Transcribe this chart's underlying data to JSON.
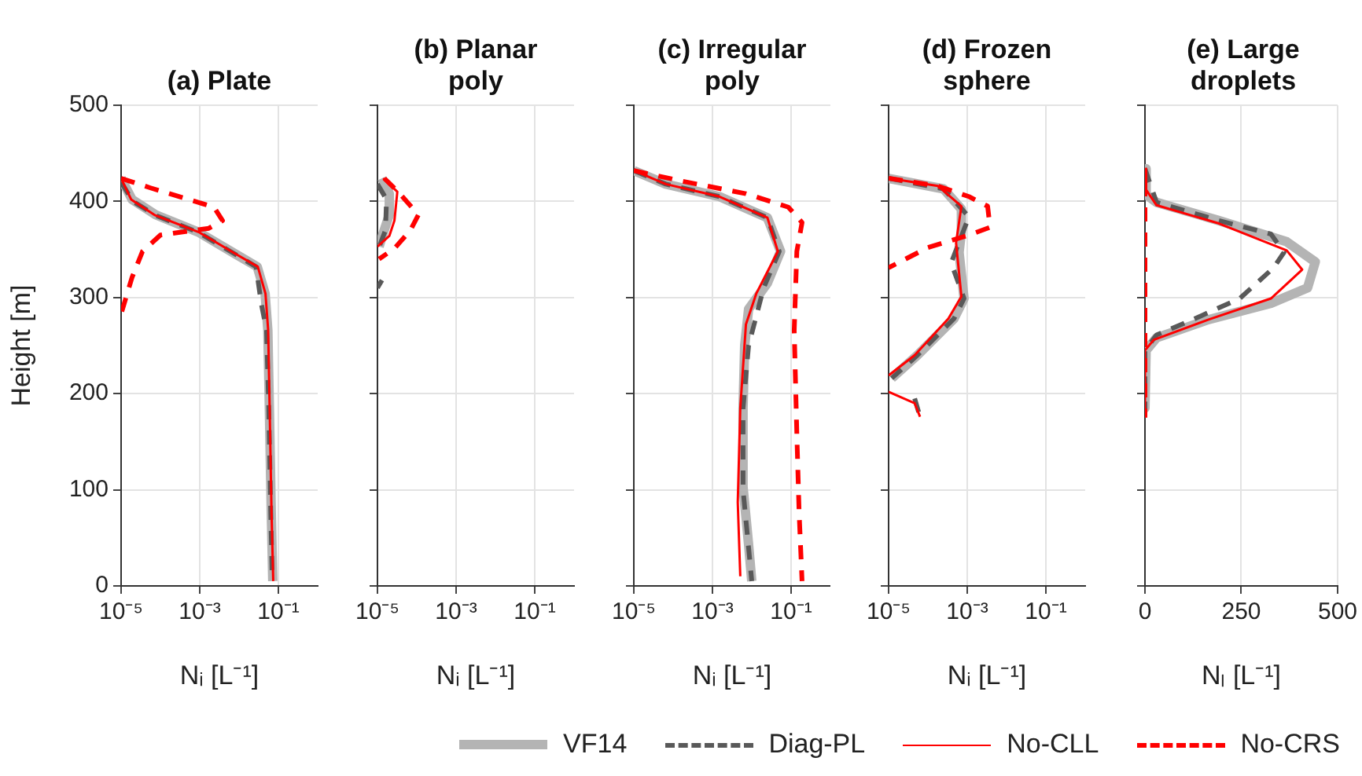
{
  "chart_data": [
    {
      "type": "line",
      "title": "(a) Plate",
      "xlabel": "Nᵢ [L⁻¹]",
      "ylabel": "Height [m]",
      "log": "x",
      "xlim": [
        1e-05,
        1
      ],
      "xticks": [
        {
          "value": 1e-05,
          "label": "10⁻⁵"
        },
        {
          "value": 0.001,
          "label": "10⁻³"
        },
        {
          "value": 0.1,
          "label": "10⁻¹"
        }
      ],
      "ylim": [
        0,
        500
      ],
      "yticks": [
        0,
        100,
        200,
        300,
        400,
        500
      ],
      "grid": true,
      "marker": "none",
      "legend": "bottom",
      "series": [
        {
          "name": "VF14",
          "color": "#b4b4b4",
          "line_style": "solid",
          "x": [
            1e-05,
            1.9e-05,
            7.6e-05,
            0.00093,
            0.0083,
            0.029,
            0.046,
            0.054,
            0.059,
            0.066,
            0.072
          ],
          "values": [
            424,
            402,
            386,
            368,
            345,
            332,
            304,
            266,
            185,
            76,
            5
          ]
        },
        {
          "name": "Diag-PL",
          "color": "#595959",
          "line_style": "dashed",
          "x": [
            1e-05,
            2e-05,
            8e-05,
            0.0009,
            0.008,
            0.027,
            0.037,
            0.05,
            0.057,
            0.064,
            0.07
          ],
          "values": [
            420,
            400,
            385,
            368,
            345,
            332,
            293,
            266,
            185,
            76,
            5
          ]
        },
        {
          "name": "No-CLL",
          "color": "#ff0000",
          "line_style": "solid",
          "x": [
            1e-05,
            1.8e-05,
            7e-05,
            0.00095,
            0.0085,
            0.03,
            0.047,
            0.055,
            0.06,
            0.067,
            0.074
          ],
          "values": [
            424,
            402,
            386,
            368,
            345,
            332,
            304,
            266,
            185,
            76,
            5
          ]
        },
        {
          "name": "No-CRS",
          "color": "#ff0000",
          "line_style": "dashed",
          "x": [
            1e-05,
            5.6e-05,
            0.0023,
            0.0038,
            0.0017,
            0.0001,
            3.5e-05,
            1.9e-05,
            1e-05
          ],
          "values": [
            424,
            414,
            394,
            380,
            372,
            365,
            348,
            321,
            283
          ]
        }
      ]
    },
    {
      "type": "line",
      "title": "(b) Planar poly",
      "xlabel": "Nᵢ [L⁻¹]",
      "log": "x",
      "xlim": [
        1e-05,
        1
      ],
      "xticks": [
        {
          "value": 1e-05,
          "label": "10⁻⁵"
        },
        {
          "value": 0.001,
          "label": "10⁻³"
        },
        {
          "value": 0.1,
          "label": "10⁻¹"
        }
      ],
      "ylim": [
        0,
        500
      ],
      "yticks": [
        0,
        100,
        200,
        300,
        400,
        500
      ],
      "grid": true,
      "tick_labels": "x",
      "marker": "none",
      "series": [
        {
          "color": "#b4b4b4",
          "line_style": "solid",
          "x": [
            1.3e-05,
            2e-05,
            2e-05,
            1.4e-05,
            1.1e-05
          ],
          "values": [
            424,
            408,
            386,
            367,
            353
          ]
        },
        {
          "color": "#595959",
          "line_style": "dashed",
          "x": [
            1e-05,
            1.7e-05,
            1.6e-05,
            1e-05,
            null,
            1.3e-05,
            1e-05
          ],
          "values": [
            418,
            402,
            370,
            348,
            null,
            318,
            310
          ]
        },
        {
          "color": "#ff0000",
          "line_style": "solid",
          "x": [
            1.4e-05,
            3.2e-05,
            2.7e-05,
            2e-05,
            1e-05
          ],
          "values": [
            424,
            410,
            380,
            364,
            353
          ]
        },
        {
          "color": "#ff0000",
          "line_style": "dashed",
          "x": [
            1.5e-05,
            3.7e-05,
            0.00011,
            6.9e-05,
            2.7e-05,
            1.1e-05
          ],
          "values": [
            424,
            408,
            386,
            370,
            351,
            340
          ]
        }
      ]
    },
    {
      "type": "line",
      "title": "(c) Irregular poly",
      "xlabel": "Nᵢ [L⁻¹]",
      "log": "x",
      "xlim": [
        1e-05,
        1
      ],
      "xticks": [
        {
          "value": 1e-05,
          "label": "10⁻⁵"
        },
        {
          "value": 0.001,
          "label": "10⁻³"
        },
        {
          "value": 0.1,
          "label": "10⁻¹"
        }
      ],
      "ylim": [
        0,
        500
      ],
      "yticks": [
        0,
        100,
        200,
        300,
        400,
        500
      ],
      "grid": true,
      "tick_labels": "x",
      "marker": "none",
      "series": [
        {
          "color": "#b4b4b4",
          "line_style": "solid",
          "x": [
            1e-05,
            6.5e-05,
            0.0015,
            0.025,
            0.054,
            0.025,
            0.0083,
            0.0066,
            0.006,
            0.006,
            0.0083,
            0.01
          ],
          "values": [
            432,
            418,
            405,
            383,
            348,
            315,
            288,
            250,
            185,
            103,
            43,
            5
          ]
        },
        {
          "color": "#595959",
          "line_style": "dashed",
          "x": [
            1e-05,
            6.5e-05,
            0.0015,
            0.025,
            0.05,
            0.02,
            0.0083,
            0.006,
            0.006,
            0.01
          ],
          "values": [
            432,
            418,
            405,
            383,
            348,
            310,
            250,
            185,
            100,
            5
          ]
        },
        {
          "color": "#ff0000",
          "line_style": "solid",
          "x": [
            1e-05,
            6.5e-05,
            0.0015,
            0.025,
            0.046,
            0.013,
            0.0071,
            0.0051,
            0.0044,
            0.0051
          ],
          "values": [
            432,
            418,
            405,
            383,
            348,
            304,
            272,
            185,
            87,
            10
          ]
        },
        {
          "color": "#ff0000",
          "line_style": "dashed",
          "x": [
            1e-05,
            0.00017,
            0.0071,
            0.085,
            0.19,
            0.14,
            0.12,
            0.14,
            0.16,
            0.19
          ],
          "values": [
            432,
            421,
            408,
            394,
            378,
            348,
            266,
            158,
            76,
            5
          ]
        }
      ]
    },
    {
      "type": "line",
      "title": "(d) Frozen sphere",
      "xlabel": "Nᵢ [L⁻¹]",
      "log": "x",
      "xlim": [
        1e-05,
        1
      ],
      "xticks": [
        {
          "value": 1e-05,
          "label": "10⁻⁵"
        },
        {
          "value": 0.001,
          "label": "10⁻³"
        },
        {
          "value": 0.1,
          "label": "10⁻¹"
        }
      ],
      "ylim": [
        0,
        500
      ],
      "yticks": [
        0,
        100,
        200,
        300,
        400,
        500
      ],
      "grid": true,
      "tick_labels": "x",
      "marker": "none",
      "series": [
        {
          "color": "#b4b4b4",
          "line_style": "solid",
          "x": [
            1e-05,
            0.00025,
            0.00071,
            0.00071,
            0.00062,
            0.00083,
            0.00046,
            5.4e-05,
            1.2e-05
          ],
          "values": [
            424,
            413,
            392,
            368,
            347,
            299,
            278,
            240,
            216
          ]
        },
        {
          "color": "#595959",
          "line_style": "dashed",
          "x": [
            1e-05,
            0.00025,
            0.0011,
            0.00039,
            0.00083,
            0.00046,
            5.4e-05,
            1.2e-05,
            null,
            4.6e-05,
            6.3e-05
          ],
          "values": [
            424,
            413,
            384,
            336,
            299,
            278,
            240,
            216,
            null,
            195,
            176
          ]
        },
        {
          "color": "#ff0000",
          "line_style": "solid",
          "x": [
            1e-05,
            0.00018,
            0.00071,
            0.00052,
            0.00071,
            0.00033,
            4.6e-05,
            1e-05,
            null,
            1e-05,
            4.6e-05,
            6.3e-05
          ],
          "values": [
            424,
            416,
            395,
            357,
            301,
            278,
            240,
            219,
            null,
            202,
            190,
            176
          ]
        },
        {
          "color": "#ff0000",
          "line_style": "dashed",
          "x": [
            1e-05,
            0.00018,
            0.0011,
            0.0033,
            0.0038,
            0.0011,
            0.0001,
            1e-05
          ],
          "values": [
            424,
            416,
            405,
            395,
            373,
            365,
            352,
            331
          ]
        }
      ]
    },
    {
      "type": "line",
      "title": "(e) Large droplets",
      "xlabel": "Nₗ [L⁻¹]",
      "xlim": [
        0,
        500
      ],
      "xticks": [
        0,
        250,
        500
      ],
      "ylim": [
        0,
        500
      ],
      "yticks": [
        0,
        100,
        200,
        300,
        400,
        500
      ],
      "grid": true,
      "tick_labels": "x",
      "marker": "none",
      "series": [
        {
          "color": "#b4b4b4",
          "line_style": "solid",
          "x": [
            0,
            3,
            30,
            192,
            368,
            442,
            422,
            327,
            165,
            30,
            3,
            0
          ],
          "values": [
            434,
            407,
            399,
            380,
            358,
            337,
            310,
            294,
            277,
            258,
            245,
            185
          ]
        },
        {
          "color": "#595959",
          "line_style": "dashed",
          "x": [
            0,
            30,
            192,
            327,
            361,
            334,
            246,
            124,
            30,
            0,
            0
          ],
          "values": [
            434,
            399,
            380,
            366,
            347,
            331,
            299,
            277,
            261,
            245,
            180
          ]
        },
        {
          "color": "#ff0000",
          "line_style": "solid",
          "x": [
            0,
            3,
            30,
            192,
            368,
            408,
            327,
            165,
            23,
            0,
            0
          ],
          "values": [
            434,
            412,
            396,
            377,
            349,
            329,
            299,
            277,
            256,
            245,
            177
          ]
        },
        {
          "color": "#ff0000",
          "line_style": "dashed",
          "x": [
            0,
            0
          ],
          "values": [
            420,
            175
          ]
        }
      ]
    }
  ]
}
